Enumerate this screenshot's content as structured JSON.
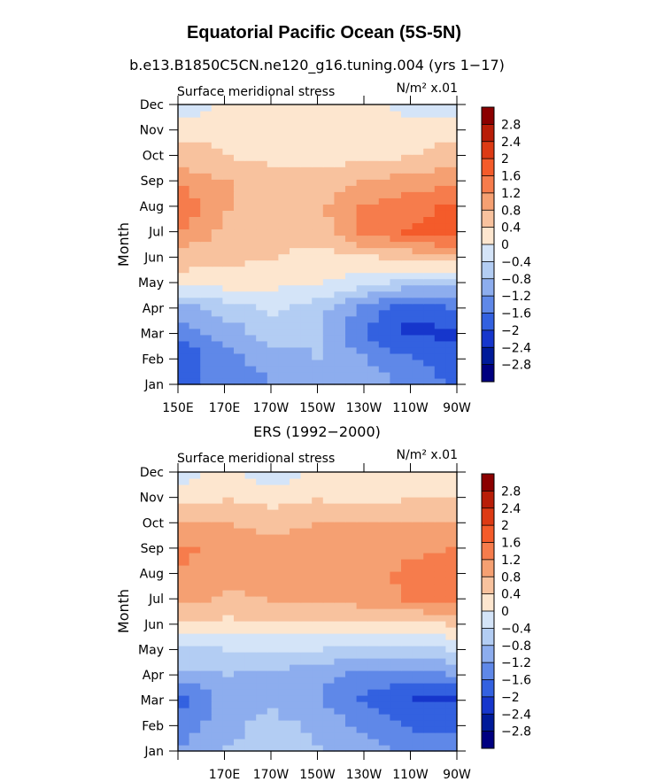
{
  "figure": {
    "title": "Equatorial Pacific Ocean (5S-5N)"
  },
  "panels": [
    {
      "subtitle": "b.e13.B1850C5CN.ne120_g16.tuning.004 (yrs 1−17)",
      "left_label": "Surface meridional stress",
      "right_label": "N/m² x.01",
      "xlabels": [
        "150E",
        "170E",
        "170W",
        "150W",
        "130W",
        "110W",
        "90W"
      ],
      "ylabels": [
        "Jan",
        "Feb",
        "Mar",
        "Apr",
        "May",
        "Jun",
        "Jul",
        "Aug",
        "Sep",
        "Oct",
        "Nov",
        "Dec"
      ],
      "yaxis_title": "Month"
    },
    {
      "subtitle": "ERS (1992−2000)",
      "left_label": "Surface meridional stress",
      "right_label": "N/m² x.01",
      "xlabels": [
        "",
        "170E",
        "170W",
        "150W",
        "130W",
        "110W",
        "90W"
      ],
      "ylabels": [
        "Jan",
        "Feb",
        "Mar",
        "Apr",
        "May",
        "Jun",
        "Jul",
        "Aug",
        "Sep",
        "Oct",
        "Nov",
        "Dec"
      ],
      "yaxis_title": "Month"
    }
  ],
  "colorbar": {
    "labels": [
      "2.8",
      "2.4",
      "2",
      "1.6",
      "1.2",
      "0.8",
      "0.4",
      "0",
      "−0.4",
      "−0.8",
      "−1.2",
      "−1.6",
      "−2",
      "−2.4",
      "−2.8"
    ],
    "colors": [
      "#8b0000",
      "#b81d08",
      "#dd3a14",
      "#f45b2a",
      "#f67c4c",
      "#f5a072",
      "#f8c29e",
      "#fde6cf",
      "#d4e4f8",
      "#b3cdf3",
      "#8dadee",
      "#5f88e8",
      "#3361e0",
      "#1636cc",
      "#001a99",
      "#000080"
    ]
  },
  "chart_data": [
    {
      "type": "heatmap",
      "title": "Equatorial Pacific Ocean (5S-5N)",
      "subtitle": "b.e13.B1850C5CN.ne120_g16.tuning.004 (yrs 1−17)",
      "variable": "Surface meridional stress",
      "units": "N/m² x.01",
      "xlabel": "",
      "ylabel": "Month",
      "x": [
        "150E",
        "170E",
        "170W",
        "150W",
        "130W",
        "110W",
        "90W"
      ],
      "y": [
        "Jan",
        "Feb",
        "Mar",
        "Apr",
        "May",
        "Jun",
        "Jul",
        "Aug",
        "Sep",
        "Oct",
        "Nov",
        "Dec"
      ],
      "levels": [
        -2.8,
        -2.4,
        -2,
        -1.6,
        -1.2,
        -0.8,
        -0.4,
        0,
        0.4,
        0.8,
        1.2,
        1.6,
        2,
        2.4,
        2.8
      ],
      "values": [
        [
          -1.8,
          -1.4,
          -1.2,
          -1.0,
          -0.9,
          -1.3,
          -1.7
        ],
        [
          -1.9,
          -1.3,
          -1.0,
          -0.8,
          -1.2,
          -1.6,
          -1.8
        ],
        [
          -1.4,
          -1.0,
          -0.6,
          -0.7,
          -1.6,
          -2.1,
          -2.1
        ],
        [
          -1.0,
          -0.6,
          -0.3,
          -0.6,
          -1.3,
          -1.8,
          -1.6
        ],
        [
          0.2,
          0.2,
          0.1,
          0.05,
          -0.2,
          -0.5,
          -0.6
        ],
        [
          0.6,
          0.5,
          0.4,
          0.2,
          0.3,
          0.5,
          0.7
        ],
        [
          1.1,
          0.7,
          0.6,
          0.6,
          1.3,
          1.6,
          1.9
        ],
        [
          1.5,
          0.8,
          0.6,
          0.7,
          1.2,
          1.4,
          1.7
        ],
        [
          1.1,
          0.8,
          0.6,
          0.6,
          0.8,
          1.0,
          1.1
        ],
        [
          0.6,
          0.4,
          0.3,
          0.3,
          0.3,
          0.4,
          0.6
        ],
        [
          0.3,
          0.3,
          0.3,
          0.2,
          0.2,
          0.2,
          0.3
        ],
        [
          -0.2,
          0.1,
          0.1,
          0.1,
          0.1,
          -0.1,
          -0.1
        ]
      ]
    },
    {
      "type": "heatmap",
      "subtitle": "ERS (1992−2000)",
      "variable": "Surface meridional stress",
      "units": "N/m² x.01",
      "xlabel": "",
      "ylabel": "Month",
      "x": [
        "150E",
        "170E",
        "170W",
        "150W",
        "130W",
        "110W",
        "90W"
      ],
      "y": [
        "Jan",
        "Feb",
        "Mar",
        "Apr",
        "May",
        "Jun",
        "Jul",
        "Aug",
        "Sep",
        "Oct",
        "Nov",
        "Dec"
      ],
      "levels": [
        -2.8,
        -2.4,
        -2,
        -1.6,
        -1.2,
        -0.8,
        -0.4,
        0,
        0.4,
        0.8,
        1.2,
        1.6,
        2,
        2.4,
        2.8
      ],
      "values": [
        [
          -1.1,
          -0.8,
          -0.6,
          -0.8,
          -1.0,
          -1.3,
          -1.4
        ],
        [
          -1.5,
          -0.9,
          -0.7,
          -0.9,
          -1.3,
          -1.7,
          -1.7
        ],
        [
          -1.7,
          -1.0,
          -0.9,
          -1.2,
          -1.7,
          -2.0,
          -2.1
        ],
        [
          -0.9,
          -0.8,
          -0.9,
          -1.0,
          -1.3,
          -1.4,
          -1.2
        ],
        [
          -0.5,
          -0.4,
          -0.4,
          -0.4,
          -0.6,
          -0.6,
          -0.4
        ],
        [
          0.3,
          0.3,
          0.3,
          0.3,
          0.2,
          0.3,
          0.4
        ],
        [
          0.9,
          0.7,
          0.8,
          0.9,
          1.0,
          1.2,
          1.4
        ],
        [
          1.1,
          0.9,
          1.0,
          1.1,
          1.0,
          1.3,
          1.5
        ],
        [
          1.3,
          1.0,
          1.0,
          1.1,
          1.0,
          1.1,
          1.2
        ],
        [
          0.8,
          0.8,
          0.7,
          0.8,
          0.8,
          0.8,
          0.8
        ],
        [
          0.3,
          0.4,
          0.3,
          0.4,
          0.3,
          0.4,
          0.4
        ],
        [
          -0.1,
          0.1,
          -0.2,
          0.1,
          0.1,
          0.1,
          0.0
        ]
      ]
    }
  ]
}
